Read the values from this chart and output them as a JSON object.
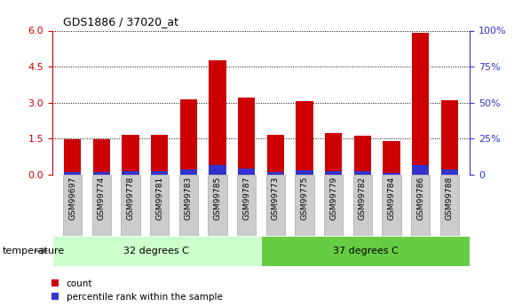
{
  "title": "GDS1886 / 37020_at",
  "samples": [
    "GSM99697",
    "GSM99774",
    "GSM99778",
    "GSM99781",
    "GSM99783",
    "GSM99785",
    "GSM99787",
    "GSM99773",
    "GSM99775",
    "GSM99779",
    "GSM99782",
    "GSM99784",
    "GSM99786",
    "GSM99788"
  ],
  "count_values": [
    1.45,
    1.48,
    1.65,
    1.65,
    3.15,
    4.75,
    3.2,
    1.65,
    3.05,
    1.72,
    1.62,
    1.38,
    5.9,
    3.1
  ],
  "percentile_values": [
    0.08,
    0.08,
    0.12,
    0.12,
    0.22,
    0.38,
    0.25,
    0.1,
    0.17,
    0.12,
    0.12,
    0.07,
    0.38,
    0.22
  ],
  "group1_label": "32 degrees C",
  "group2_label": "37 degrees C",
  "group1_count": 7,
  "group2_count": 7,
  "ylim_left": [
    0,
    6
  ],
  "ylim_right": [
    0,
    100
  ],
  "yticks_left": [
    0,
    1.5,
    3.0,
    4.5,
    6.0
  ],
  "yticks_right": [
    0,
    25,
    50,
    75,
    100
  ],
  "bar_color_red": "#cc0000",
  "bar_color_blue": "#3333cc",
  "group1_bg": "#ccffcc",
  "group2_bg": "#66cc44",
  "tick_bg": "#cccccc",
  "legend_count": "count",
  "legend_percentile": "percentile rank within the sample",
  "temperature_label": "temperature",
  "bar_width": 0.6
}
